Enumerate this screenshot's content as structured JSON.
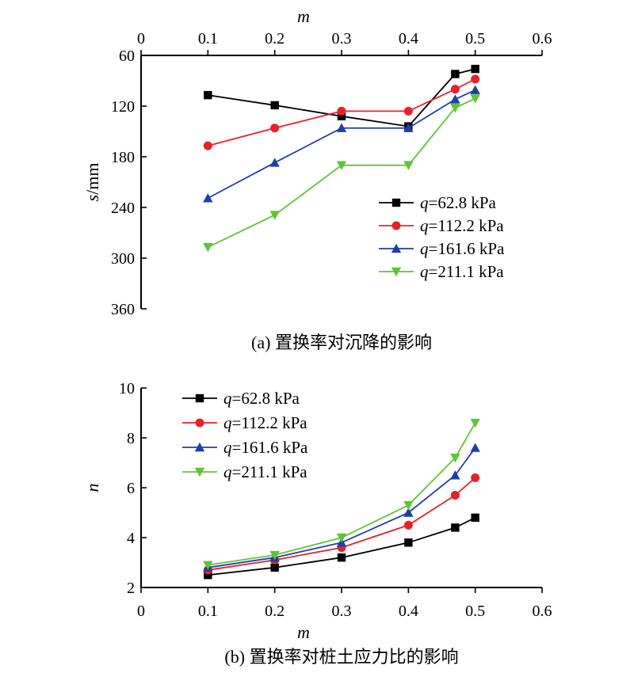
{
  "chart_data": [
    {
      "type": "line",
      "caption": "(a) 置换率对沉降的影响",
      "xlabel": "m",
      "ylabel_italic": "s",
      "ylabel_unit": "/mm",
      "x_axis_position": "top",
      "y_inverted": true,
      "xlim": [
        0,
        0.6
      ],
      "ylim": [
        60,
        360
      ],
      "xticks": [
        "0",
        "0.1",
        "0.2",
        "0.3",
        "0.4",
        "0.5",
        "0.6"
      ],
      "yticks": [
        "60",
        "120",
        "180",
        "240",
        "300",
        "360"
      ],
      "grid": false,
      "legend_position": "center-right",
      "series": [
        {
          "name_var": "q",
          "name_rest": "=62.8 kPa",
          "color": "#000000",
          "marker": "square",
          "x": [
            0.1,
            0.2,
            0.3,
            0.4,
            0.47,
            0.5
          ],
          "values": [
            107,
            119,
            132,
            144,
            82,
            76
          ]
        },
        {
          "name_var": "q",
          "name_rest": "=112.2 kPa",
          "color": "#e8212a",
          "marker": "circle",
          "x": [
            0.1,
            0.2,
            0.3,
            0.4,
            0.47,
            0.5
          ],
          "values": [
            167,
            146,
            126,
            126,
            100,
            88
          ]
        },
        {
          "name_var": "q",
          "name_rest": "=161.6 kPa",
          "color": "#1f3fa8",
          "marker": "triangle-up",
          "x": [
            0.1,
            0.2,
            0.3,
            0.4,
            0.47,
            0.5
          ],
          "values": [
            229,
            187,
            146,
            146,
            112,
            101
          ]
        },
        {
          "name_var": "q",
          "name_rest": "=211.1 kPa",
          "color": "#5fc436",
          "marker": "triangle-down",
          "x": [
            0.1,
            0.2,
            0.3,
            0.4,
            0.47,
            0.5
          ],
          "values": [
            287,
            249,
            190,
            190,
            122,
            111
          ]
        }
      ]
    },
    {
      "type": "line",
      "caption": "(b) 置换率对桩土应力比的影响",
      "xlabel": "m",
      "ylabel_italic": "n",
      "ylabel_unit": "",
      "x_axis_position": "bottom",
      "y_inverted": false,
      "xlim": [
        0,
        0.6
      ],
      "ylim": [
        2,
        10
      ],
      "xticks": [
        "0",
        "0.1",
        "0.2",
        "0.3",
        "0.4",
        "0.5",
        "0.6"
      ],
      "yticks": [
        "2",
        "4",
        "6",
        "8",
        "10"
      ],
      "grid": false,
      "legend_position": "top-left",
      "series": [
        {
          "name_var": "q",
          "name_rest": "=62.8 kPa",
          "color": "#000000",
          "marker": "square",
          "x": [
            0.1,
            0.2,
            0.3,
            0.4,
            0.47,
            0.5
          ],
          "values": [
            2.5,
            2.8,
            3.2,
            3.8,
            4.4,
            4.8
          ]
        },
        {
          "name_var": "q",
          "name_rest": "=112.2 kPa",
          "color": "#e8212a",
          "marker": "circle",
          "x": [
            0.1,
            0.2,
            0.3,
            0.4,
            0.47,
            0.5
          ],
          "values": [
            2.7,
            3.1,
            3.6,
            4.5,
            5.7,
            6.4
          ]
        },
        {
          "name_var": "q",
          "name_rest": "=161.6 kPa",
          "color": "#1f3fa8",
          "marker": "triangle-up",
          "x": [
            0.1,
            0.2,
            0.3,
            0.4,
            0.47,
            0.5
          ],
          "values": [
            2.8,
            3.2,
            3.8,
            5.0,
            6.5,
            7.6
          ]
        },
        {
          "name_var": "q",
          "name_rest": "=211.1 kPa",
          "color": "#5fc436",
          "marker": "triangle-down",
          "x": [
            0.1,
            0.2,
            0.3,
            0.4,
            0.47,
            0.5
          ],
          "values": [
            2.9,
            3.3,
            4.0,
            5.3,
            7.2,
            8.6
          ]
        }
      ]
    }
  ]
}
